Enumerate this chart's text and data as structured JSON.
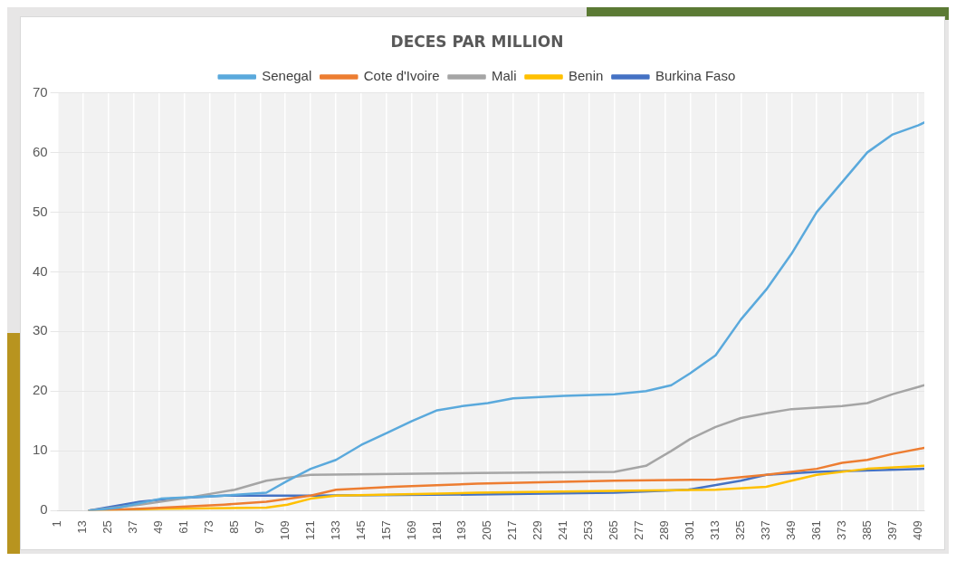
{
  "chart_data": {
    "type": "line",
    "title": "DECES PAR MILLION",
    "legend": "top",
    "grid": true,
    "marker": "none",
    "line_style": "solid",
    "xlim": [
      1,
      412
    ],
    "xticks": [
      1,
      13,
      25,
      37,
      49,
      61,
      73,
      85,
      97,
      109,
      121,
      133,
      145,
      157,
      169,
      181,
      193,
      205,
      217,
      229,
      241,
      253,
      265,
      277,
      289,
      301,
      313,
      325,
      337,
      349,
      361,
      373,
      385,
      397,
      409
    ],
    "ylim": [
      0,
      70
    ],
    "yticks": [
      0,
      10,
      20,
      30,
      40,
      50,
      60,
      70
    ],
    "series": [
      {
        "name": "Senegal",
        "color": "#5aa9dc",
        "x": [
          16,
          30,
          50,
          80,
          100,
          110,
          121,
          133,
          145,
          157,
          169,
          181,
          193,
          205,
          217,
          241,
          265,
          280,
          292,
          301,
          313,
          325,
          337,
          349,
          361,
          373,
          385,
          397,
          409,
          412
        ],
        "values": [
          0,
          0.5,
          2,
          2.5,
          3,
          5,
          7,
          8.5,
          11,
          13,
          15,
          16.8,
          17.5,
          18,
          18.8,
          19.2,
          19.5,
          20,
          21,
          23,
          26,
          32,
          37,
          43,
          50,
          55,
          60,
          63,
          64.5,
          65
        ]
      },
      {
        "name": "Cote d'Ivoire",
        "color": "#ed7d31",
        "x": [
          16,
          40,
          80,
          100,
          121,
          133,
          160,
          200,
          265,
          313,
          337,
          361,
          373,
          385,
          397,
          412
        ],
        "values": [
          0,
          0.3,
          1,
          1.5,
          2.5,
          3.5,
          4,
          4.5,
          5,
          5.2,
          6,
          7,
          8,
          8.5,
          9.5,
          10.5
        ]
      },
      {
        "name": "Mali",
        "color": "#a5a5a5",
        "x": [
          16,
          40,
          60,
          85,
          100,
          110,
          121,
          200,
          265,
          280,
          292,
          301,
          313,
          325,
          337,
          349,
          373,
          385,
          397,
          412
        ],
        "values": [
          0,
          1,
          2,
          3.5,
          5,
          5.5,
          6,
          6.3,
          6.5,
          7.5,
          10,
          12,
          14,
          15.5,
          16.3,
          17,
          17.5,
          18,
          19.5,
          21
        ]
      },
      {
        "name": "Benin",
        "color": "#ffc000",
        "x": [
          16,
          50,
          100,
          110,
          121,
          133,
          200,
          265,
          313,
          337,
          349,
          361,
          385,
          412
        ],
        "values": [
          0,
          0.3,
          0.5,
          1,
          2,
          2.5,
          3,
          3.3,
          3.5,
          4,
          5,
          6,
          7,
          7.5
        ]
      },
      {
        "name": "Burkina Faso",
        "color": "#4472c4",
        "x": [
          16,
          40,
          55,
          80,
          121,
          200,
          265,
          300,
          325,
          337,
          361,
          412
        ],
        "values": [
          0,
          1.5,
          2,
          2.5,
          2.5,
          2.7,
          3,
          3.5,
          5,
          6,
          6.5,
          7
        ]
      }
    ]
  }
}
